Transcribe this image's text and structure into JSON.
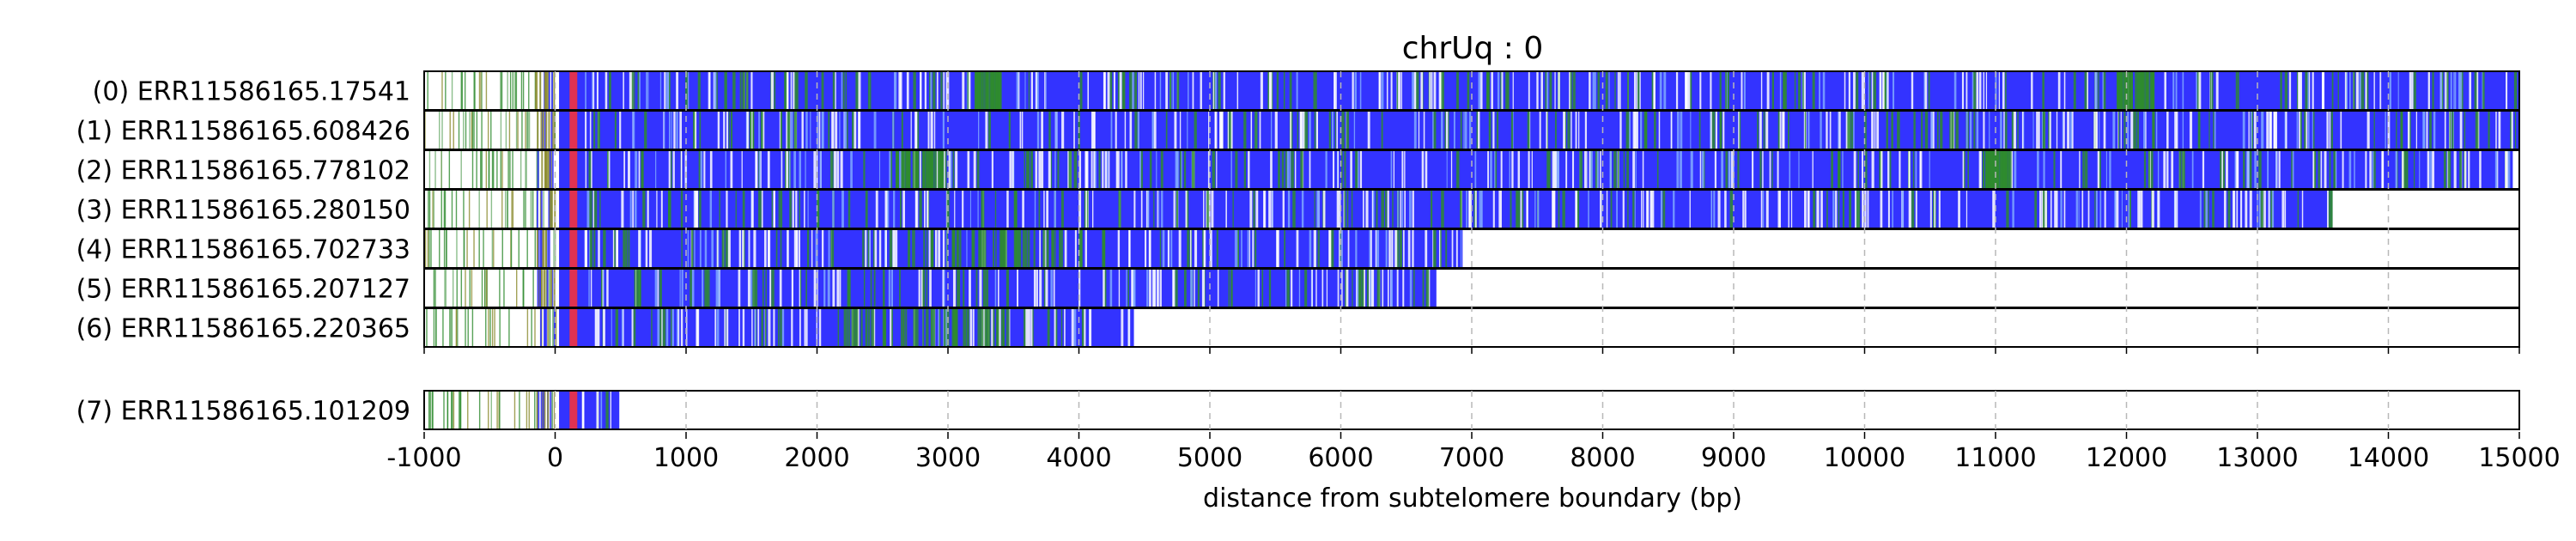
{
  "chart_data": {
    "type": "heatmap",
    "title": "chrUq : 0",
    "xlabel": "distance from subtelomere boundary (bp)",
    "xlim": [
      -1000,
      15000
    ],
    "xticks": [
      -1000,
      0,
      1000,
      2000,
      3000,
      4000,
      5000,
      6000,
      7000,
      8000,
      9000,
      10000,
      11000,
      12000,
      13000,
      14000,
      15000
    ],
    "grid": "vertical dashed",
    "colors": {
      "telomere_repeat": "#3333ff",
      "variant_repeat": "#2e8b2e",
      "boundary_marker": "#ff3333",
      "background": "#ffffff"
    },
    "reads": [
      {
        "label": "(0) ERR11586165.17541",
        "start": -1000,
        "end": 15000,
        "group": 0
      },
      {
        "label": "(1) ERR11586165.608426",
        "start": -1000,
        "end": 15000,
        "group": 0
      },
      {
        "label": "(2) ERR11586165.778102",
        "start": -1000,
        "end": 14950,
        "group": 0
      },
      {
        "label": "(3) ERR11586165.280150",
        "start": -1000,
        "end": 13580,
        "group": 0
      },
      {
        "label": "(4) ERR11586165.702733",
        "start": -1000,
        "end": 6930,
        "group": 0
      },
      {
        "label": "(5) ERR11586165.207127",
        "start": -1000,
        "end": 6730,
        "group": 0
      },
      {
        "label": "(6) ERR11586165.220365",
        "start": -1000,
        "end": 4420,
        "group": 0
      },
      {
        "label": "(7) ERR11586165.101209",
        "start": -1000,
        "end": 490,
        "group": 1
      }
    ]
  }
}
